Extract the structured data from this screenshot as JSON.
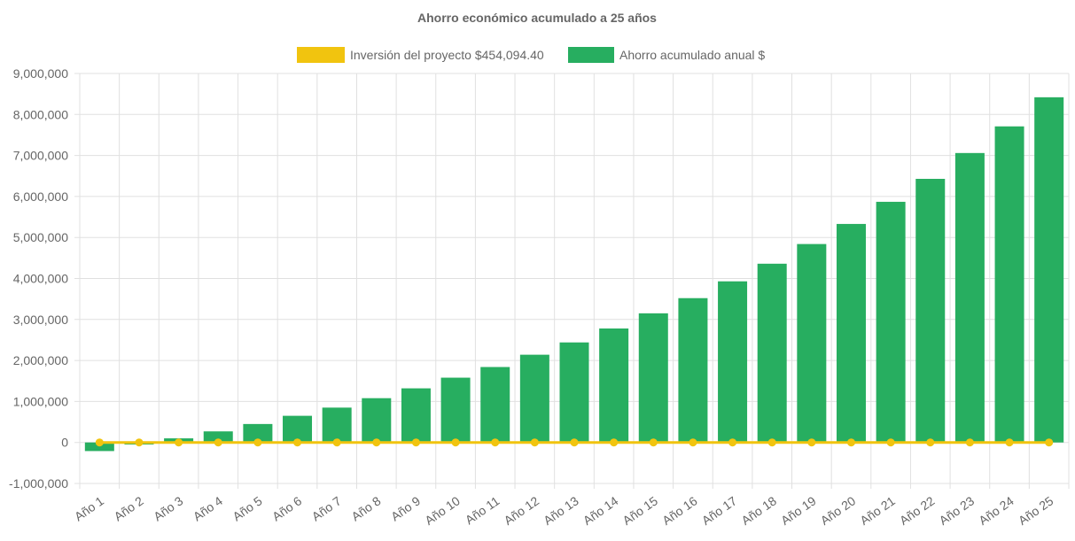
{
  "chart_data": {
    "type": "bar",
    "title": "Ahorro económico acumulado a 25 años",
    "categories": [
      "Año 1",
      "Año 2",
      "Año 3",
      "Año 4",
      "Año 5",
      "Año 6",
      "Año 7",
      "Año 8",
      "Año 9",
      "Año 10",
      "Año 11",
      "Año 12",
      "Año 13",
      "Año 14",
      "Año 15",
      "Año 16",
      "Año 17",
      "Año 18",
      "Año 19",
      "Año 20",
      "Año 21",
      "Año 22",
      "Año 23",
      "Año 24",
      "Año 25"
    ],
    "series": [
      {
        "name": "Inversión del proyecto $454,094.40",
        "type": "line",
        "color": "#f1c40f",
        "values": [
          0,
          0,
          0,
          0,
          0,
          0,
          0,
          0,
          0,
          0,
          0,
          0,
          0,
          0,
          0,
          0,
          0,
          0,
          0,
          0,
          0,
          0,
          0,
          0,
          0
        ]
      },
      {
        "name": "Ahorro acumulado anual $",
        "type": "bar",
        "color": "#27ae60",
        "values": [
          -210000,
          -50000,
          100000,
          270000,
          450000,
          650000,
          850000,
          1080000,
          1320000,
          1580000,
          1840000,
          2140000,
          2440000,
          2780000,
          3150000,
          3520000,
          3930000,
          4360000,
          4840000,
          5330000,
          5870000,
          6430000,
          7060000,
          7710000,
          8420000
        ]
      }
    ],
    "ylim": [
      -1000000,
      9000000
    ],
    "yticks": [
      "9,000,000",
      "8,000,000",
      "7,000,000",
      "6,000,000",
      "5,000,000",
      "4,000,000",
      "3,000,000",
      "2,000,000",
      "1,000,000",
      "0",
      "-1,000,000"
    ],
    "grid": true,
    "legend": "top"
  }
}
